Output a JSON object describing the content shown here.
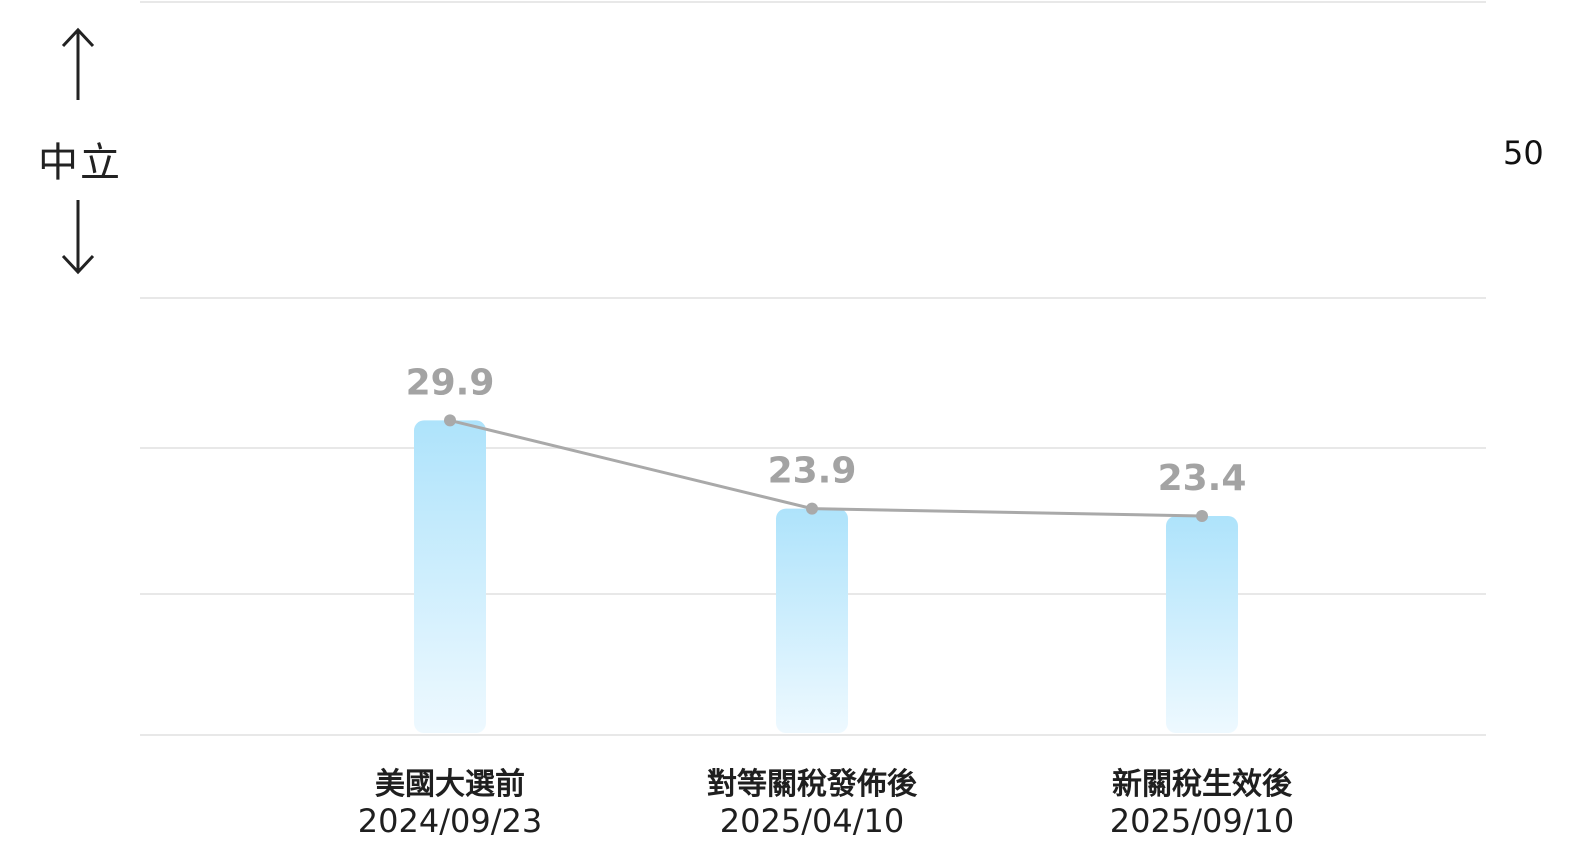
{
  "chart_data": {
    "type": "bar",
    "categories": [
      "美國大選前",
      "對等關稅發佈後",
      "新關稅生效後"
    ],
    "dates": [
      "2024/09/23",
      "2025/04/10",
      "2025/09/10"
    ],
    "values": [
      29.9,
      23.9,
      23.4
    ],
    "data_labels": [
      "29.9",
      "23.9",
      "23.4"
    ],
    "overlay_line": true,
    "reference_value": 50,
    "reference_label": "50",
    "side_label": "中立",
    "ylim": [
      8.5,
      58.5
    ],
    "grid": true,
    "colors": {
      "bar_top": "#aee3fb",
      "bar_bottom": "#eef9ff",
      "line": "#a9a9a9",
      "data_label": "#a3a3a3",
      "grid": "#e8e8e8",
      "axis_text": "#1f1f1f"
    }
  }
}
